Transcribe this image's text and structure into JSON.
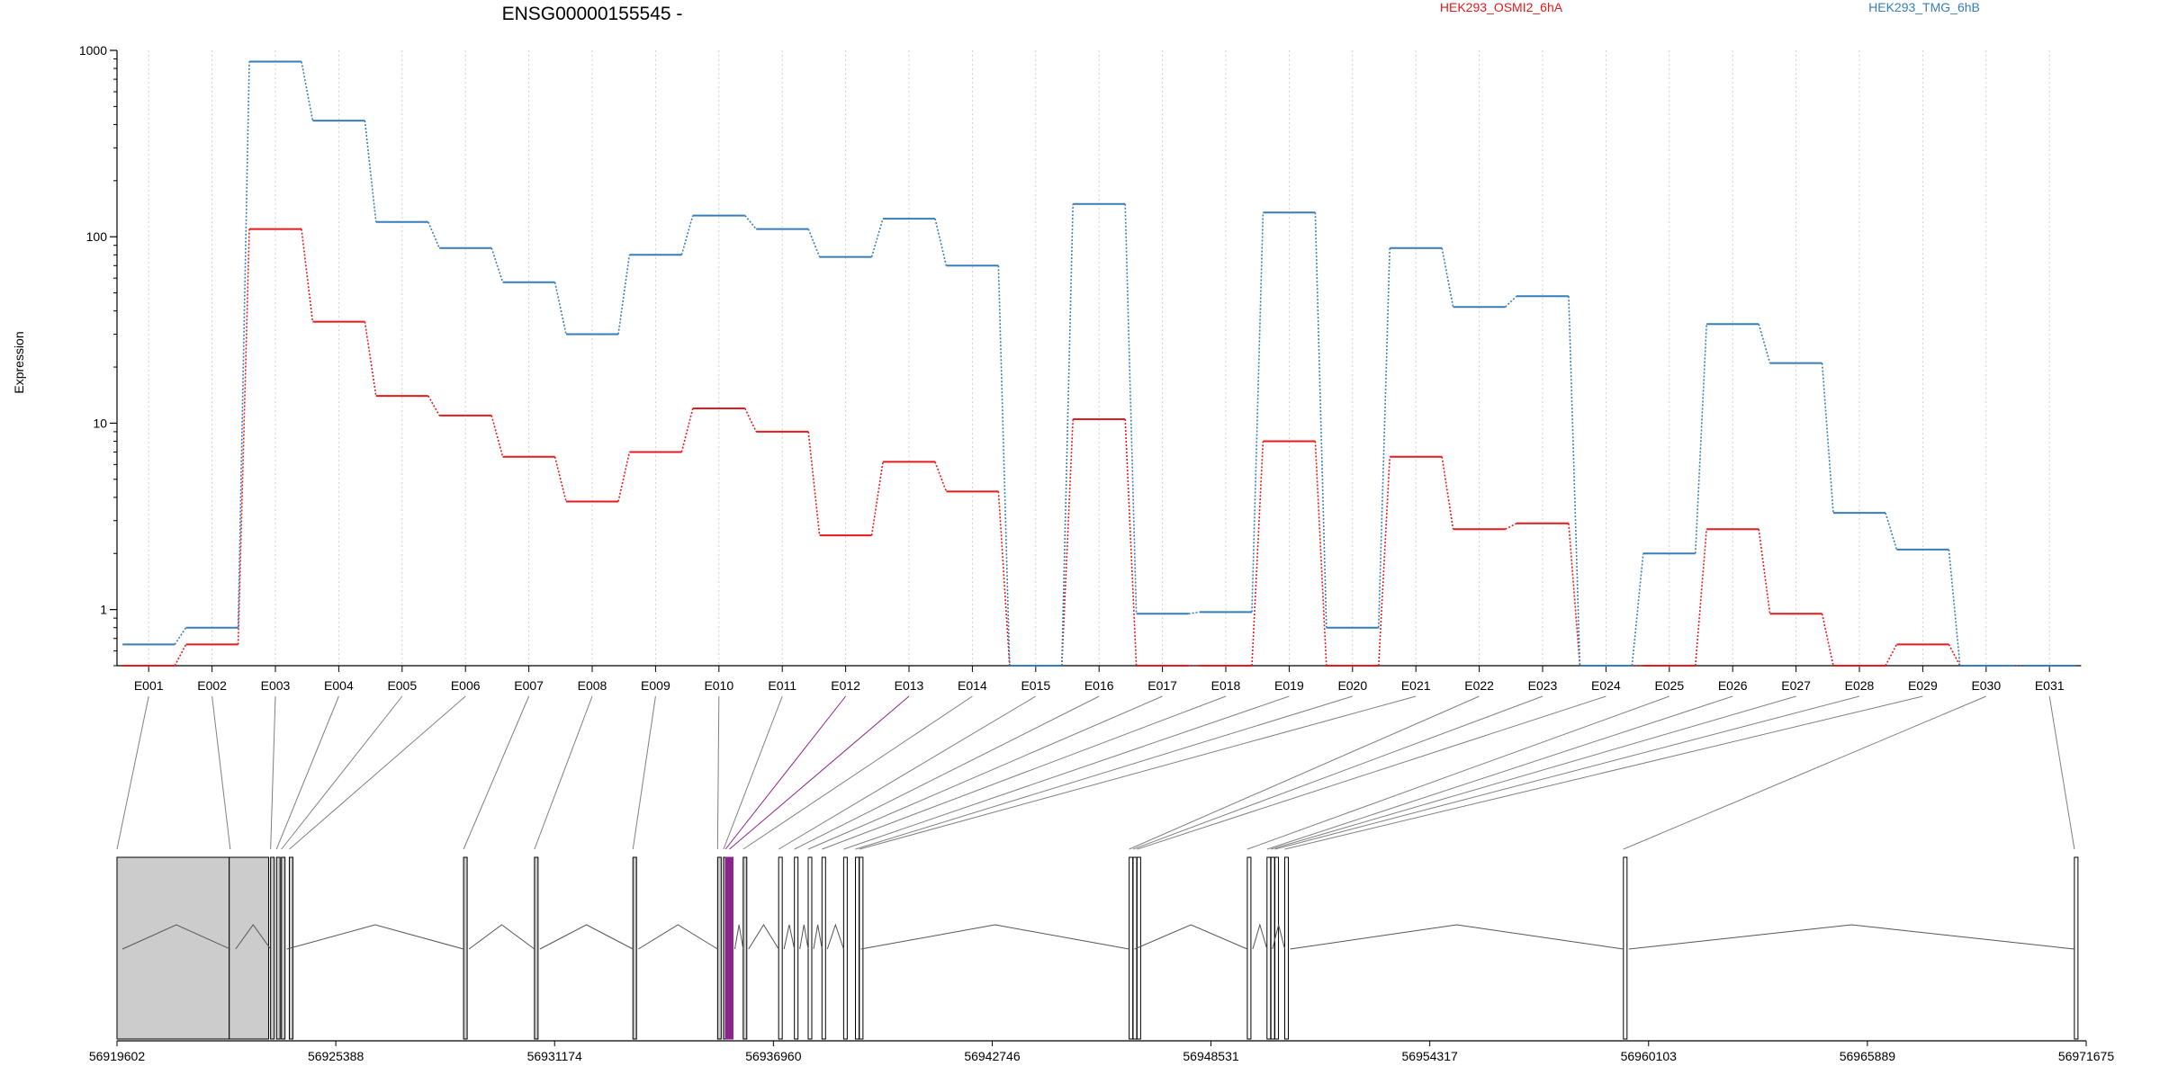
{
  "chart_data": {
    "type": "line",
    "title": "ENSG00000155545 -",
    "ylabel": "Expression",
    "xlabel": "",
    "y_scale": "log",
    "ylim": [
      0.5,
      1000
    ],
    "y_ticks": [
      "1",
      "10",
      "100",
      "1000"
    ],
    "grid": "vertical",
    "legend": "top",
    "categories": [
      "E001",
      "E002",
      "E003",
      "E004",
      "E005",
      "E006",
      "E007",
      "E008",
      "E009",
      "E010",
      "E011",
      "E012",
      "E013",
      "E014",
      "E015",
      "E016",
      "E017",
      "E018",
      "E019",
      "E020",
      "E021",
      "E022",
      "E023",
      "E024",
      "E025",
      "E026",
      "E027",
      "E028",
      "E029",
      "E030",
      "E031"
    ],
    "highlight": [
      "E012",
      "E013"
    ],
    "series": [
      {
        "name": "HEK293_OSMI2_6hA",
        "color": "#e41a1c",
        "values": [
          0.5,
          0.65,
          110,
          35,
          14,
          11,
          6.6,
          3.8,
          7,
          12,
          9,
          2.5,
          6.2,
          4.3,
          0.5,
          10.5,
          0.5,
          0.5,
          8,
          0.5,
          6.6,
          2.7,
          2.9,
          0.5,
          0.5,
          2.7,
          0.95,
          0.5,
          0.65,
          0.5,
          0.5
        ]
      },
      {
        "name": "HEK293_TMG_6hB",
        "color": "#377eb8",
        "values": [
          0.65,
          0.8,
          870,
          420,
          120,
          87,
          57,
          30,
          80,
          130,
          110,
          78,
          125,
          70,
          0.5,
          150,
          0.95,
          0.97,
          135,
          0.8,
          87,
          42,
          48,
          0.5,
          2,
          34,
          21,
          3.3,
          2.1,
          0.5,
          0.5
        ]
      }
    ],
    "gene_model": {
      "genomic_ticks": [
        "56919602",
        "56925388",
        "56931174",
        "56936960",
        "56942746",
        "56948531",
        "56954317",
        "56960103",
        "56965889",
        "56971675"
      ],
      "start": 56919602,
      "end": 56971675,
      "exon_start_fractions": [
        0,
        0.0575,
        0.078,
        0.081,
        0.0835,
        0.0875,
        0.176,
        0.212,
        0.262,
        0.305,
        0.308,
        0.309,
        0.311,
        0.318,
        0.336,
        0.344,
        0.351,
        0.358,
        0.369,
        0.375,
        0.377,
        0.514,
        0.516,
        0.518,
        0.574,
        0.584,
        0.586,
        0.588,
        0.593,
        0.765,
        0.994
      ]
    },
    "colors": {
      "axis": "#000000",
      "grid": "#d0d0d0",
      "exon_fill": "#cccccc",
      "highlight": "#8a258a",
      "connector": "#7f7f7f"
    }
  }
}
